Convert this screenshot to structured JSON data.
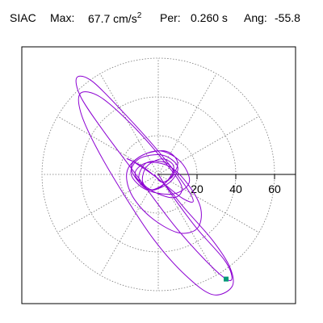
{
  "header": {
    "station": "SIAC",
    "max_label": "Max:",
    "max_value": "67.7 cm/s",
    "max_exp": "2",
    "per_label": "Per:",
    "per_value": "0.260 s",
    "ang_label": "Ang:",
    "ang_value": "-55.8"
  },
  "chart_data": {
    "type": "line",
    "title": "SIAC   Max:  67.7 cm/s2   Per:  0.260 s   Ang: -55.8",
    "xlabel": "",
    "ylabel": "",
    "polar_grid": true,
    "grid_rings": [
      20,
      40,
      60
    ],
    "radial_spokes_deg": [
      0,
      30,
      60,
      90,
      120,
      150,
      180,
      210,
      240,
      270,
      300,
      330
    ],
    "x_ticks": [
      20,
      40,
      60
    ],
    "x_tick_labels": [
      "20",
      "40",
      "60"
    ],
    "xlim": [
      -73,
      73
    ],
    "ylim": [
      -68,
      68
    ],
    "max_abs": 67.7,
    "max_angle_deg": -55.8,
    "period_s": 0.26,
    "series": [
      {
        "color": "#8c00d2",
        "x": [
          0,
          8,
          20,
          34,
          38,
          35,
          24,
          8,
          -10,
          -28,
          -40,
          -42,
          -34,
          -18,
          0,
          14,
          18,
          12,
          2,
          -8,
          -16,
          -12,
          2,
          14,
          28,
          37,
          38,
          28,
          14,
          -2,
          -18,
          -32,
          -40,
          -40,
          -30,
          -14,
          2,
          12,
          8,
          -4,
          -12,
          -6,
          6,
          16,
          22,
          20,
          10,
          -4,
          -14,
          -16,
          -8,
          4,
          10,
          6,
          -2,
          -8,
          -6,
          2,
          8,
          4,
          -4,
          -10,
          -14,
          -8,
          2,
          12,
          16,
          8,
          -6,
          -14,
          -10,
          2,
          10,
          6,
          -4,
          -10,
          -6,
          4,
          8,
          2,
          -2
        ],
        "y": [
          0,
          -12,
          -28,
          -44,
          -53,
          -54,
          -44,
          -26,
          -2,
          22,
          40,
          50,
          48,
          32,
          12,
          -6,
          -14,
          -12,
          -4,
          4,
          8,
          6,
          -4,
          -18,
          -34,
          -48,
          -58,
          -62,
          -52,
          -34,
          -10,
          14,
          32,
          42,
          40,
          26,
          8,
          -6,
          -12,
          -8,
          0,
          6,
          4,
          -6,
          -18,
          -28,
          -30,
          -22,
          -10,
          2,
          10,
          12,
          6,
          -2,
          -8,
          -4,
          4,
          8,
          4,
          -4,
          -8,
          -4,
          4,
          10,
          12,
          6,
          -4,
          -10,
          -8,
          0,
          8,
          10,
          4,
          -4,
          -8,
          -2,
          6,
          6,
          0,
          -4,
          0
        ]
      }
    ],
    "end_marker": {
      "x": 35,
      "y": -54,
      "color": "#009977"
    }
  },
  "x_tick_labels": [
    "20",
    "40",
    "60"
  ]
}
